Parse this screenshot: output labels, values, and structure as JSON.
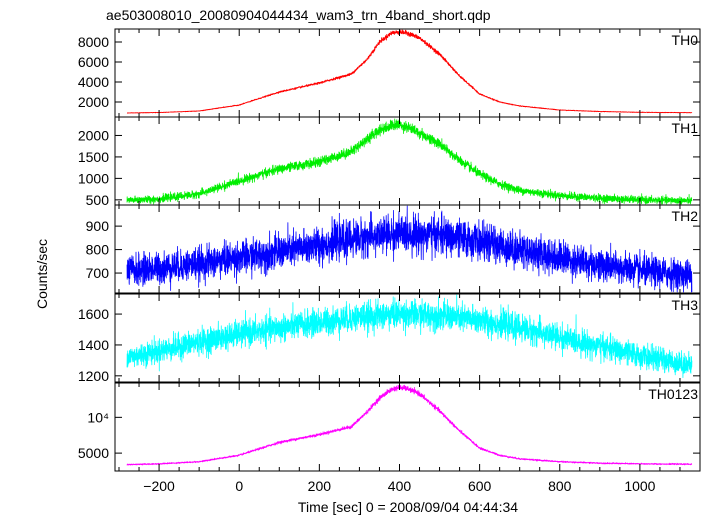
{
  "chart_data": {
    "type": "line",
    "title": "ae503008010_20080904044434_wam3_trn_4band_short.qdp",
    "xlabel": "Time [sec] 0 = 2008/09/04 04:44:34",
    "ylabel": "Counts/sec",
    "xlim": [
      -310,
      1150
    ],
    "xticks": [
      -200,
      0,
      200,
      400,
      600,
      800,
      1000
    ],
    "panels": [
      {
        "name": "TH0",
        "color": "#ff0000",
        "ylim": [
          500,
          9300
        ],
        "yticks": [
          2000,
          4000,
          6000,
          8000
        ],
        "ytick_labels": [
          "2000",
          "4000",
          "6000",
          "8000"
        ],
        "series": [
          {
            "name": "TH0",
            "x": [
              -280,
              -200,
              -100,
              0,
              100,
              200,
              280,
              320,
              350,
              380,
              400,
              420,
              450,
              500,
              550,
              600,
              650,
              700,
              800,
              900,
              1000,
              1130
            ],
            "y": [
              900,
              950,
              1100,
              1700,
              3000,
              3900,
              4800,
              6300,
              8000,
              8900,
              9000,
              8900,
              8400,
              6800,
              4600,
              2800,
              2000,
              1600,
              1200,
              1050,
              970,
              930
            ]
          }
        ]
      },
      {
        "name": "TH1",
        "color": "#00ee00",
        "ylim": [
          380,
          2430
        ],
        "yticks": [
          500,
          1000,
          1500,
          2000
        ],
        "ytick_labels": [
          "500",
          "1000",
          "1500",
          "2000"
        ],
        "series": [
          {
            "name": "TH1",
            "x": [
              -280,
              -200,
              -100,
              0,
              100,
              200,
              280,
              320,
              350,
              380,
              400,
              420,
              450,
              500,
              550,
              600,
              650,
              700,
              800,
              900,
              1000,
              1130
            ],
            "y": [
              490,
              520,
              640,
              940,
              1220,
              1380,
              1630,
              1920,
              2130,
              2230,
              2250,
              2200,
              2060,
              1800,
              1420,
              1100,
              870,
              720,
              600,
              540,
              500,
              480
            ]
          }
        ]
      },
      {
        "name": "TH2",
        "color": "#0000ff",
        "ylim": [
          615,
          990
        ],
        "yticks": [
          700,
          800,
          900
        ],
        "ytick_labels": [
          "700",
          "800",
          "900"
        ],
        "series": [
          {
            "name": "TH2",
            "x": [
              -280,
              -200,
              -100,
              0,
              100,
              200,
              300,
              400,
              500,
              600,
              700,
              800,
              900,
              1000,
              1130
            ],
            "y": [
              710,
              720,
              740,
              765,
              790,
              820,
              850,
              870,
              860,
              835,
              800,
              765,
              735,
              710,
              690
            ]
          }
        ]
      },
      {
        "name": "TH3",
        "color": "#00ffff",
        "ylim": [
          1160,
          1730
        ],
        "yticks": [
          1200,
          1400,
          1600
        ],
        "ytick_labels": [
          "1200",
          "1400",
          "1600"
        ],
        "series": [
          {
            "name": "TH3",
            "x": [
              -280,
              -200,
              -100,
              0,
              100,
              200,
              300,
              400,
              500,
              600,
              700,
              800,
              900,
              1000,
              1130
            ],
            "y": [
              1320,
              1360,
              1420,
              1470,
              1510,
              1545,
              1580,
              1600,
              1590,
              1560,
              1510,
              1450,
              1390,
              1330,
              1270
            ]
          }
        ]
      },
      {
        "name": "TH0123",
        "color": "#ff00ff",
        "ylim": [
          2500,
          14800
        ],
        "yticks": [
          5000,
          10000
        ],
        "ytick_labels": [
          "5000",
          "10⁴"
        ],
        "series": [
          {
            "name": "TH0123",
            "x": [
              -280,
              -200,
              -100,
              0,
              100,
              200,
              280,
              320,
              350,
              380,
              400,
              420,
              450,
              500,
              550,
              600,
              650,
              700,
              800,
              900,
              1000,
              1130
            ],
            "y": [
              3400,
              3500,
              3800,
              4700,
              6500,
              7600,
              8700,
              10800,
              12700,
              13900,
              14200,
              14000,
              13300,
              10900,
              8100,
              5700,
              4700,
              4200,
              3800,
              3600,
              3500,
              3450
            ]
          }
        ]
      }
    ],
    "xtick_labels": [
      "−200",
      "0",
      "200",
      "400",
      "600",
      "800",
      "1000"
    ],
    "grid": false,
    "legend": "panel labels top-right"
  }
}
